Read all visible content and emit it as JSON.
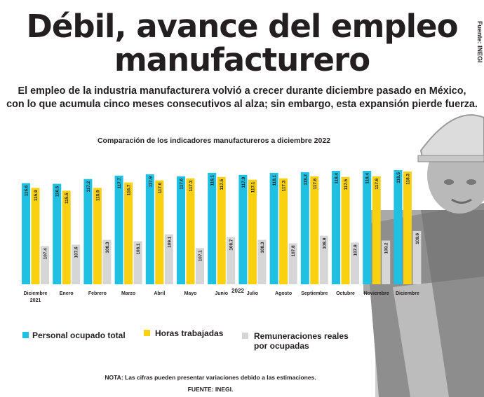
{
  "title_line1": "Débil, avance del empleo",
  "title_line2": "manufacturero",
  "subtitle_line1": "El empleo de la industria manufacturera volvió a crecer durante diciembre pasado en México,",
  "subtitle_line2": "con lo que acumula cinco meses consecutivos al alza; sin embargo, esta expansión pierde fuerza.",
  "side_text": "Fuente: INEGI",
  "note": "NOTA: Las cifras pueden presentar variaciones debido a las estimaciones.",
  "source": "FUENTE: INEGI.",
  "chart_data": {
    "type": "bar",
    "title": "Comparación de los indicadores manufactureros a diciembre 2022",
    "categories": [
      "Diciembre",
      "Enero",
      "Febrero",
      "Marzo",
      "Abril",
      "Mayo",
      "Junio",
      "Julio",
      "Agosto",
      "Septiembre",
      "Octubre",
      "Noviembre",
      "Diciembre"
    ],
    "category_sublabels": [
      "2021",
      "",
      "",
      "",
      "",
      "",
      "",
      "",
      "",
      "",
      "",
      "",
      ""
    ],
    "year_label": "2022",
    "series": [
      {
        "name": "Personal ocupado total",
        "color": "#1fc0e2",
        "values": [
          116.6,
          116.5,
          117.2,
          117.7,
          117.9,
          117.6,
          118.1,
          117.8,
          118.1,
          118.2,
          118.4,
          118.4,
          118.5
        ]
      },
      {
        "name": "Horas trabajadas",
        "color": "#f9d111",
        "values": [
          115.9,
          115.5,
          115.9,
          116.7,
          117.0,
          117.3,
          117.5,
          117.1,
          117.3,
          117.6,
          117.5,
          117.6,
          118.3
        ]
      },
      {
        "name": "Remuneraciones reales por ocupadas",
        "color": "#d6d6d6",
        "values": [
          107.4,
          107.6,
          108.3,
          108.1,
          109.1,
          107.1,
          108.7,
          108.3,
          107.8,
          108.9,
          107.9,
          108.2,
          109.6
        ]
      }
    ],
    "legend_labels": [
      "Personal ocupado total",
      "Horas trabajadas",
      "Remuneraciones reales",
      "por ocupadas"
    ],
    "ylim": [
      101.8,
      118.5
    ],
    "legend_position": "bottom"
  }
}
